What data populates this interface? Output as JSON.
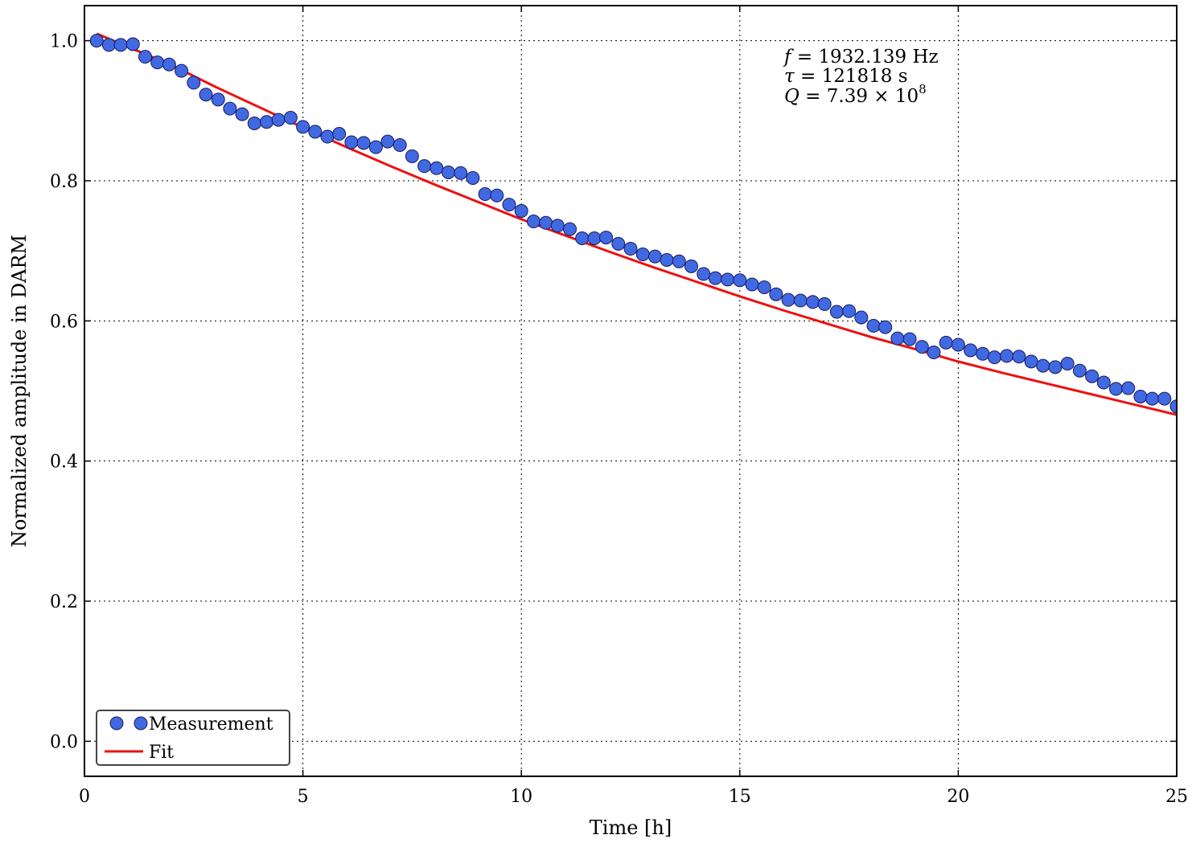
{
  "chart_data": {
    "type": "scatter",
    "title": "",
    "xlabel": "Time [h]",
    "ylabel": "Normalized amplitude in DARM",
    "xlim": [
      0,
      25
    ],
    "ylim": [
      -0.05,
      1.05
    ],
    "xticks": [
      0,
      5,
      10,
      15,
      20,
      25
    ],
    "xtick_labels": [
      "0",
      "5",
      "10",
      "15",
      "20",
      "25"
    ],
    "yticks": [
      0.0,
      0.2,
      0.4,
      0.6,
      0.8,
      1.0
    ],
    "ytick_labels": [
      "0.0",
      "0.2",
      "0.4",
      "0.6",
      "0.8",
      "1.0"
    ],
    "grid": true,
    "legend_position": "bottom-left",
    "annotations": [
      {
        "symbol": "f",
        "rest": " = 1932.139 Hz"
      },
      {
        "symbol": "τ",
        "rest": " = 121818 s"
      },
      {
        "symbol": "Q",
        "rest": " = 7.39 × 10",
        "superscript": "8"
      }
    ],
    "series": [
      {
        "name": "Measurement",
        "kind": "markers",
        "color": "#4169e1",
        "x": [
          0.28,
          0.56,
          0.83,
          1.11,
          1.39,
          1.67,
          1.94,
          2.22,
          2.5,
          2.78,
          3.06,
          3.33,
          3.61,
          3.89,
          4.17,
          4.44,
          4.72,
          5.0,
          5.28,
          5.56,
          5.83,
          6.11,
          6.39,
          6.67,
          6.94,
          7.22,
          7.5,
          7.78,
          8.06,
          8.33,
          8.61,
          8.89,
          9.17,
          9.44,
          9.72,
          10.0,
          10.28,
          10.56,
          10.83,
          11.11,
          11.39,
          11.67,
          11.94,
          12.22,
          12.5,
          12.78,
          13.06,
          13.33,
          13.61,
          13.89,
          14.17,
          14.44,
          14.72,
          15.0,
          15.28,
          15.56,
          15.83,
          16.11,
          16.39,
          16.67,
          16.94,
          17.22,
          17.5,
          17.78,
          18.06,
          18.33,
          18.61,
          18.89,
          19.17,
          19.44,
          19.72,
          20.0,
          20.28,
          20.56,
          20.83,
          21.11,
          21.39,
          21.67,
          21.94,
          22.22,
          22.5,
          22.78,
          23.06,
          23.33,
          23.61,
          23.89,
          24.17,
          24.44,
          24.72,
          25.0
        ],
        "y": [
          1.0,
          0.994,
          0.994,
          0.995,
          0.977,
          0.969,
          0.966,
          0.957,
          0.94,
          0.923,
          0.916,
          0.903,
          0.895,
          0.882,
          0.884,
          0.887,
          0.89,
          0.877,
          0.87,
          0.863,
          0.867,
          0.855,
          0.854,
          0.848,
          0.856,
          0.851,
          0.835,
          0.821,
          0.818,
          0.812,
          0.811,
          0.804,
          0.781,
          0.779,
          0.766,
          0.757,
          0.742,
          0.74,
          0.736,
          0.731,
          0.718,
          0.718,
          0.719,
          0.71,
          0.703,
          0.695,
          0.692,
          0.687,
          0.685,
          0.678,
          0.667,
          0.661,
          0.659,
          0.658,
          0.652,
          0.648,
          0.638,
          0.63,
          0.629,
          0.627,
          0.624,
          0.613,
          0.614,
          0.605,
          0.593,
          0.591,
          0.575,
          0.574,
          0.563,
          0.555,
          0.569,
          0.566,
          0.558,
          0.553,
          0.548,
          0.55,
          0.549,
          0.542,
          0.536,
          0.534,
          0.539,
          0.529,
          0.521,
          0.512,
          0.503,
          0.504,
          0.492,
          0.489,
          0.489,
          0.478
        ]
      },
      {
        "name": "Fit",
        "kind": "line",
        "color": "#ee1111",
        "x": [
          0.28,
          1,
          2,
          3,
          4,
          5,
          6,
          7,
          8,
          9,
          10,
          11,
          12,
          13,
          14,
          15,
          16,
          17,
          18,
          19,
          20,
          21,
          22,
          23,
          24,
          25
        ],
        "y": [
          1.01,
          0.991,
          0.965,
          0.934,
          0.905,
          0.876,
          0.848,
          0.821,
          0.795,
          0.77,
          0.745,
          0.722,
          0.699,
          0.677,
          0.656,
          0.635,
          0.615,
          0.596,
          0.577,
          0.56,
          0.542,
          0.526,
          0.511,
          0.496,
          0.481,
          0.466
        ]
      }
    ]
  }
}
